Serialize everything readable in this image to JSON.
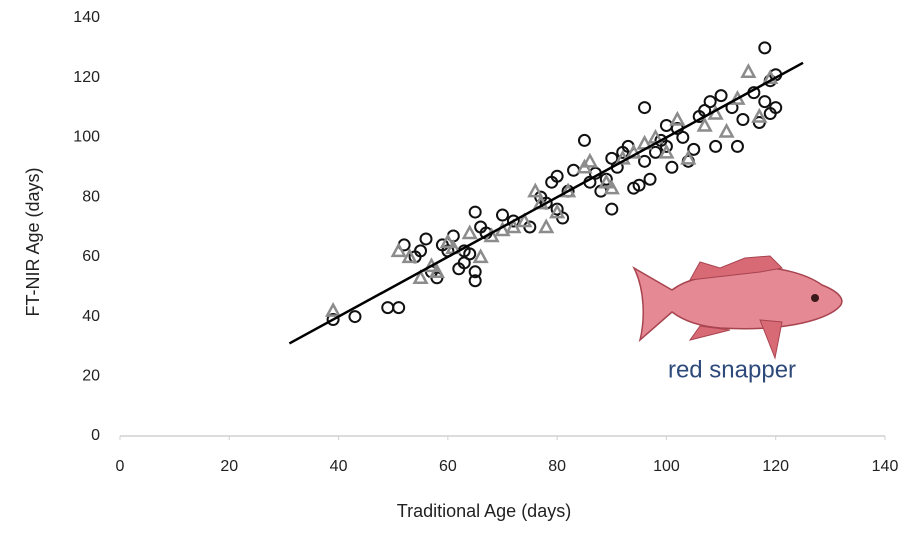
{
  "chart_data": {
    "type": "scatter",
    "x_label": "Traditional Age (days)",
    "y_label": "FT-NIR Age (days)",
    "annotation": "red snapper",
    "xlim": [
      0,
      140
    ],
    "xticks": [
      0,
      20,
      40,
      60,
      80,
      100,
      120,
      140
    ],
    "ylim": [
      0,
      140
    ],
    "yticks": [
      0,
      20,
      40,
      60,
      80,
      100,
      120,
      140
    ],
    "grid": false,
    "series": [
      {
        "marker": "circle",
        "color": "#111111",
        "x": [
          39,
          43,
          49,
          51,
          52,
          54,
          55,
          56,
          57,
          58,
          59,
          60,
          61,
          62,
          63,
          63,
          64,
          65,
          65,
          65,
          66,
          67,
          70,
          72,
          75,
          77,
          78,
          79,
          80,
          80,
          81,
          82,
          83,
          85,
          86,
          87,
          88,
          89,
          90,
          90,
          91,
          92,
          93,
          94,
          95,
          96,
          96,
          97,
          98,
          99,
          100,
          100,
          101,
          102,
          103,
          104,
          105,
          106,
          107,
          108,
          109,
          110,
          112,
          113,
          114,
          116,
          117,
          118,
          118,
          119,
          119,
          120,
          120
        ],
        "y": [
          39,
          40,
          43,
          43,
          64,
          60,
          62,
          66,
          55,
          53,
          64,
          62,
          67,
          56,
          58,
          62,
          61,
          75,
          52,
          55,
          70,
          68,
          74,
          72,
          70,
          80,
          78,
          85,
          87,
          76,
          73,
          82,
          89,
          99,
          85,
          88,
          82,
          86,
          76,
          93,
          90,
          95,
          97,
          83,
          84,
          110,
          92,
          86,
          95,
          99,
          104,
          97,
          90,
          103,
          100,
          92,
          96,
          107,
          109,
          112,
          97,
          114,
          110,
          97,
          106,
          115,
          105,
          130,
          112,
          108,
          119,
          110,
          121
        ]
      },
      {
        "marker": "triangle",
        "color": "#8c8c8c",
        "x": [
          39,
          51,
          53,
          55,
          57,
          58,
          60,
          61,
          64,
          66,
          68,
          70,
          72,
          74,
          76,
          77,
          78,
          80,
          82,
          85,
          86,
          89,
          90,
          92,
          94,
          96,
          98,
          100,
          102,
          104,
          107,
          109,
          111,
          113,
          115,
          117,
          119
        ],
        "y": [
          42,
          62,
          60,
          53,
          57,
          55,
          65,
          63,
          68,
          60,
          67,
          69,
          70,
          72,
          82,
          78,
          70,
          75,
          82,
          90,
          92,
          85,
          83,
          93,
          95,
          98,
          100,
          95,
          106,
          93,
          104,
          108,
          102,
          113,
          122,
          107,
          120
        ]
      }
    ],
    "fit_line": {
      "x": [
        31,
        125
      ],
      "y": [
        31,
        125
      ],
      "color": "#000000"
    }
  }
}
